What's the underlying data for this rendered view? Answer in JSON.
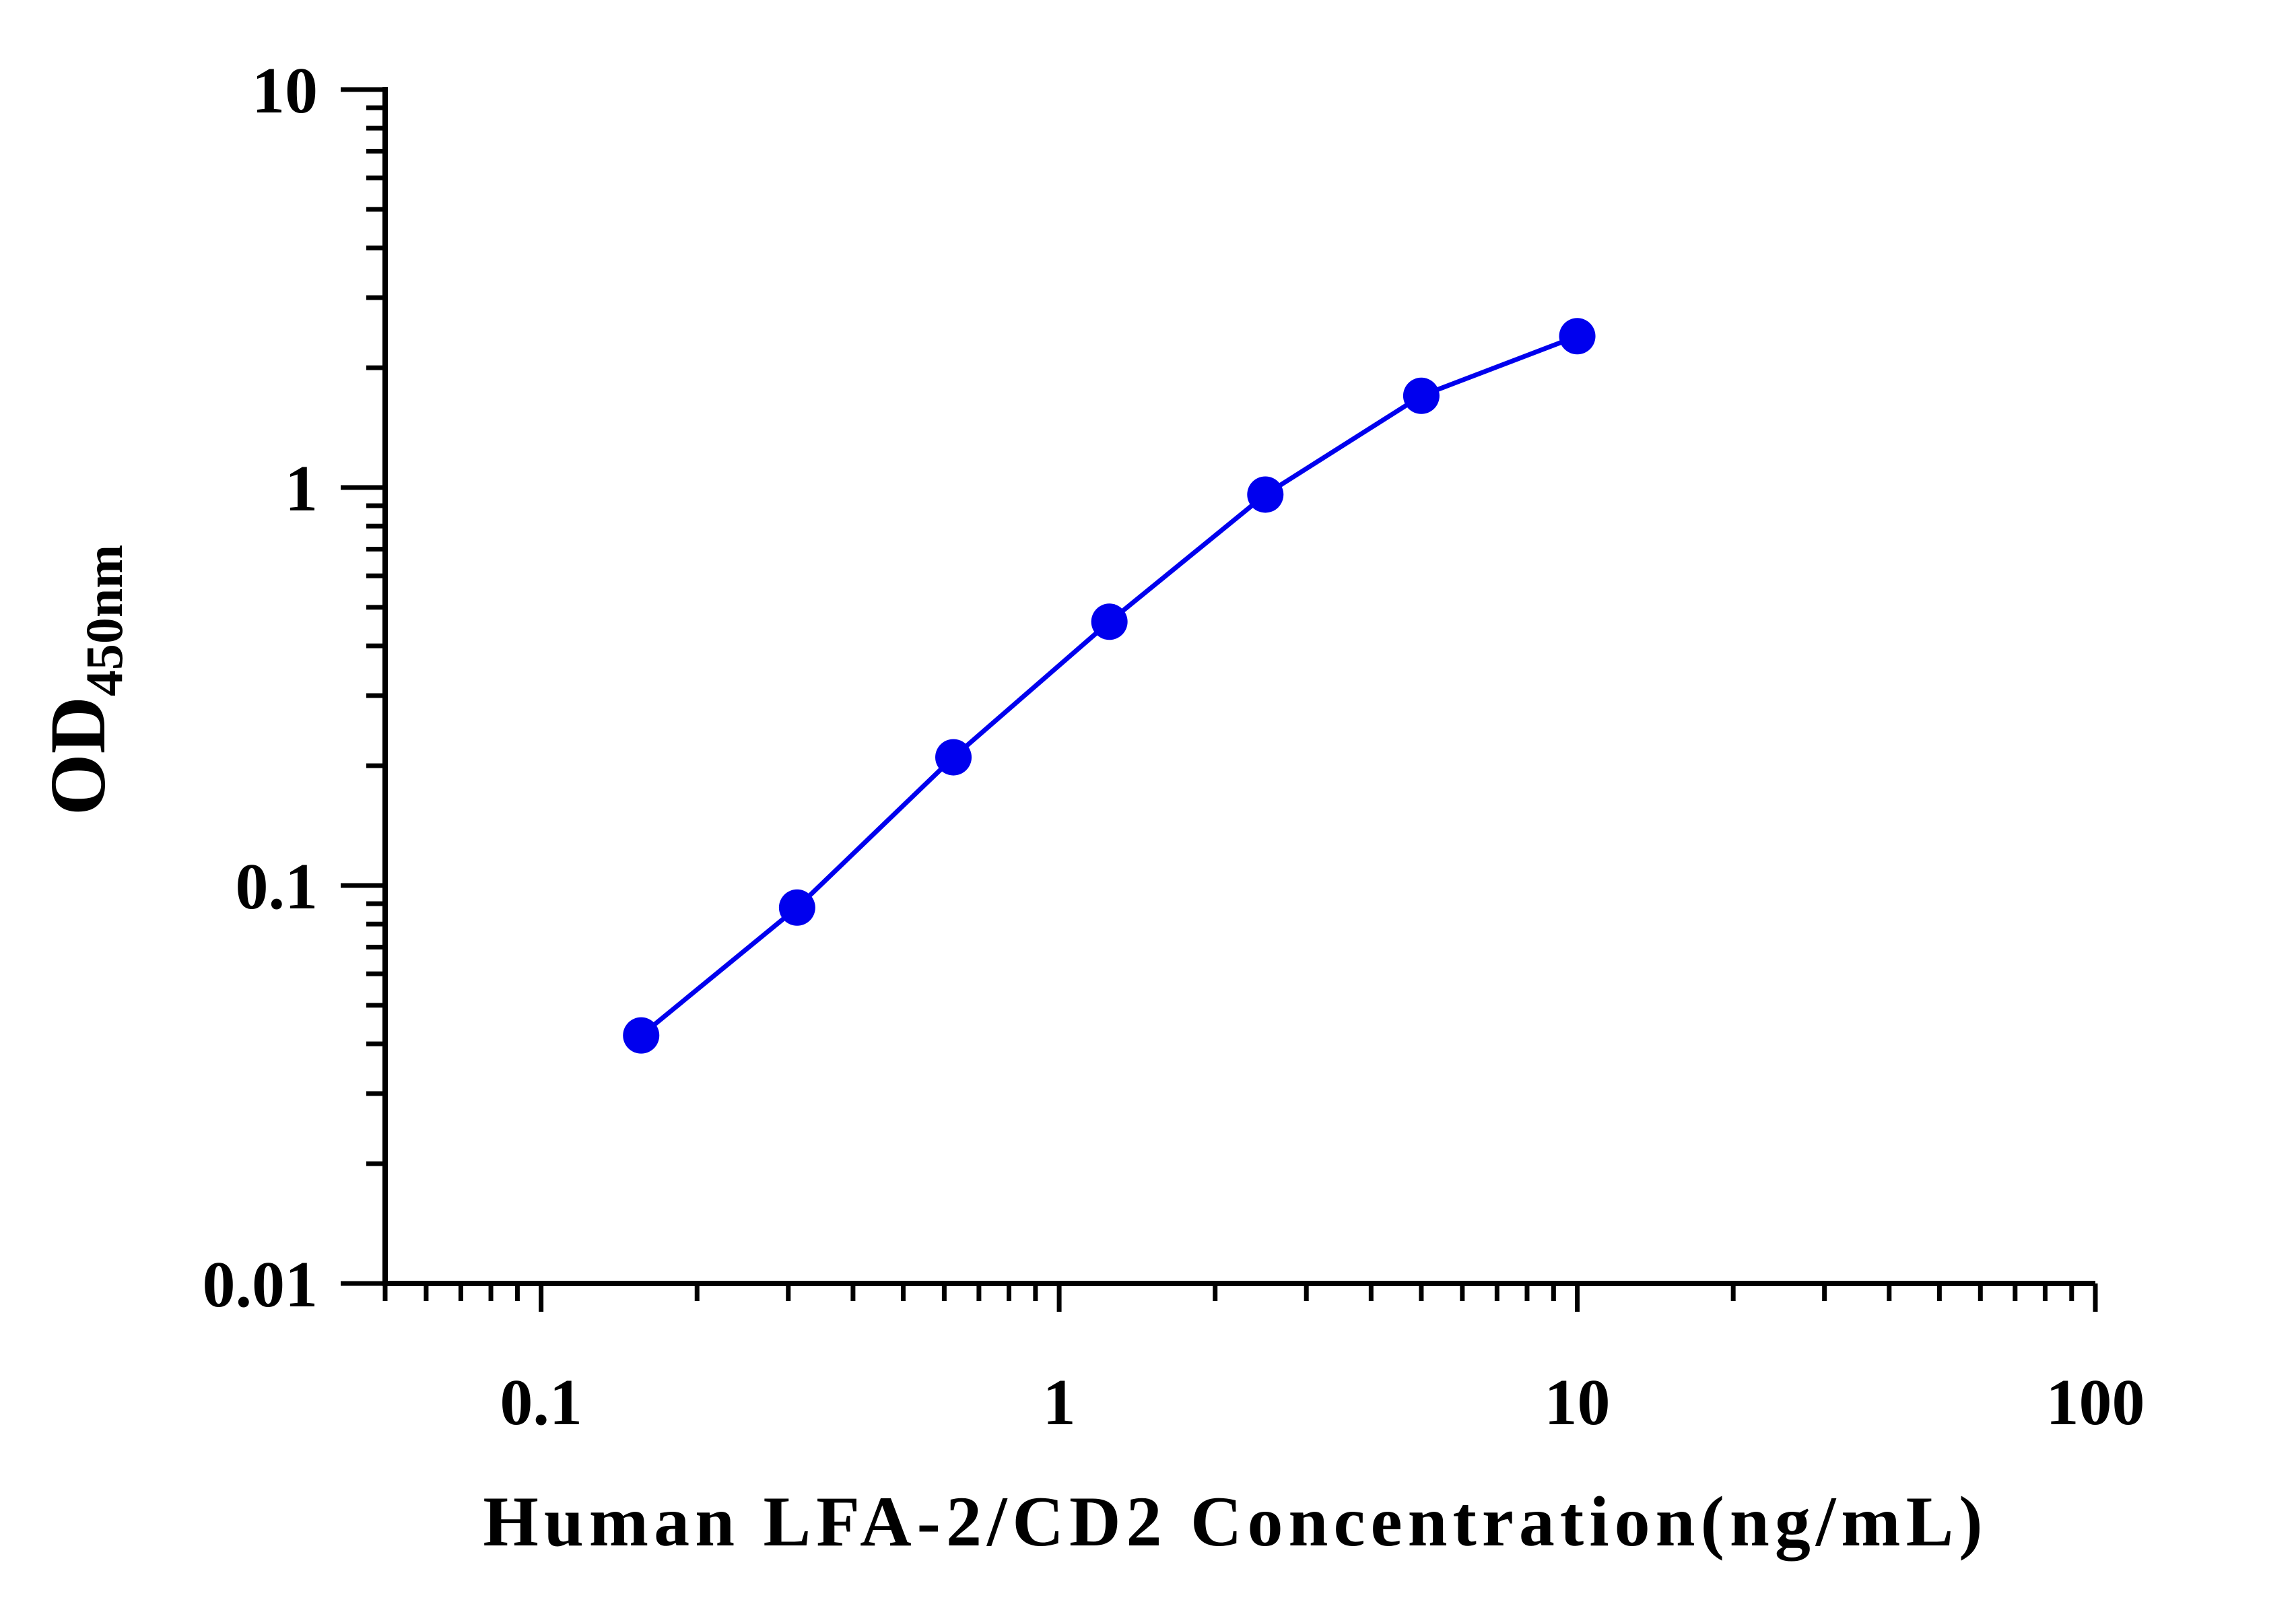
{
  "chart_data": {
    "type": "line",
    "x_scale": "log",
    "y_scale": "log",
    "xlim": [
      0.05,
      100
    ],
    "ylim": [
      0.01,
      10
    ],
    "x_ticks": [
      "0.1",
      "1",
      "10",
      "100"
    ],
    "y_ticks": [
      "0.01",
      "0.1",
      "1",
      "10"
    ],
    "xlabel": "Human LFA-2/CD2 Concentration(ng/mL)",
    "ylabel_main": "OD",
    "ylabel_sub": "450nm",
    "grid": false,
    "legend": "none",
    "series": [
      {
        "color": "#0000ee",
        "x": [
          0.156,
          0.312,
          0.625,
          1.25,
          2.5,
          5,
          10
        ],
        "y": [
          0.042,
          0.088,
          0.21,
          0.46,
          0.96,
          1.7,
          2.4
        ]
      }
    ]
  }
}
